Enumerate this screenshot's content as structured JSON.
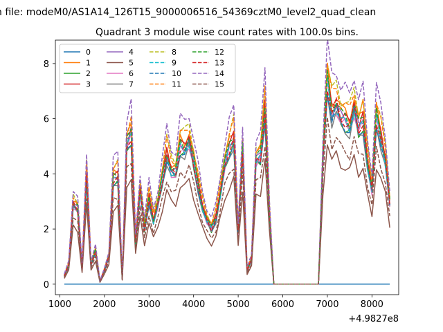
{
  "suptitle": "n file: modeM0/AS1A14_126T15_9000006516_54369cztM0_level2_quad_clean",
  "title": "Quadrant 3 module wise count rates with 100.0s bins.",
  "chart_data": {
    "type": "line",
    "title": "Quadrant 3 module wise count rates with 100.0s bins.",
    "xlabel": "",
    "ylabel": "",
    "x_offset_label": "+4.9827e8",
    "xlim": [
      900,
      8600
    ],
    "ylim": [
      -0.38,
      8.85
    ],
    "x_ticks": [
      1000,
      2000,
      3000,
      4000,
      5000,
      6000,
      7000,
      8000
    ],
    "x_tick_labels": [
      "1000",
      "2000",
      "3000",
      "4000",
      "5000",
      "6000",
      "7000",
      "8000"
    ],
    "y_ticks": [
      0,
      2,
      4,
      6,
      8
    ],
    "y_tick_labels": [
      "0",
      "2",
      "4",
      "6",
      "8"
    ],
    "grid": false,
    "legend_position": "top-left",
    "legend_columns": 4,
    "x": [
      1100,
      1200,
      1300,
      1400,
      1500,
      1600,
      1700,
      1800,
      1900,
      2000,
      2100,
      2200,
      2300,
      2400,
      2500,
      2600,
      2700,
      2800,
      2900,
      3000,
      3100,
      3200,
      3300,
      3400,
      3500,
      3600,
      3700,
      3800,
      3900,
      4000,
      4100,
      4200,
      4300,
      4400,
      4500,
      4600,
      4700,
      4800,
      4900,
      5000,
      5100,
      5200,
      5300,
      5400,
      5500,
      5600,
      5700,
      5800,
      5900,
      6000,
      6100,
      6200,
      6300,
      6400,
      6500,
      6600,
      6700,
      6800,
      6900,
      7000,
      7100,
      7200,
      7300,
      7400,
      7500,
      7600,
      7700,
      7800,
      7900,
      8000,
      8100,
      8200,
      8300,
      8400
    ],
    "base_profile": [
      0.3,
      0.7,
      2.9,
      2.7,
      0.6,
      3.9,
      0.7,
      1.2,
      0.1,
      0.5,
      1.0,
      3.8,
      3.9,
      0.2,
      5.0,
      5.4,
      1.5,
      3.4,
      2.0,
      3.1,
      2.3,
      2.9,
      3.8,
      4.7,
      4.1,
      4.0,
      5.0,
      4.9,
      5.2,
      4.4,
      3.6,
      2.8,
      2.3,
      2.0,
      2.4,
      3.3,
      4.3,
      4.9,
      5.3,
      1.9,
      4.8,
      0.5,
      0.9,
      4.5,
      4.6,
      6.3,
      2.6,
      0.0,
      0.0,
      0.0,
      0.0,
      0.0,
      0.0,
      0.0,
      0.0,
      0.0,
      0.0,
      0.0,
      4.5,
      7.3,
      6.2,
      6.5,
      6.0,
      5.9,
      5.7,
      6.4,
      5.6,
      5.9,
      4.4,
      3.4,
      6.0,
      5.3,
      4.5,
      2.9
    ],
    "series": [
      {
        "name": "0",
        "style": "solid",
        "color": "#1f77b4",
        "flat": 0.0
      },
      {
        "name": "1",
        "style": "solid",
        "color": "#ff7f0e",
        "scale": 1.06
      },
      {
        "name": "2",
        "style": "solid",
        "color": "#2ca02c",
        "scale": 0.97
      },
      {
        "name": "3",
        "style": "solid",
        "color": "#d62728",
        "scale": 1.02
      },
      {
        "name": "4",
        "style": "solid",
        "color": "#9467bd",
        "scale": 1.01
      },
      {
        "name": "5",
        "style": "solid",
        "color": "#8c564b",
        "scale": 0.72
      },
      {
        "name": "6",
        "style": "solid",
        "color": "#e377c2",
        "scale": 0.98
      },
      {
        "name": "7",
        "style": "solid",
        "color": "#7f7f7f",
        "scale": 0.95
      },
      {
        "name": "8",
        "style": "dashed",
        "color": "#bcbd22",
        "scale": 1.12
      },
      {
        "name": "9",
        "style": "dashed",
        "color": "#17becf",
        "scale": 0.99
      },
      {
        "name": "10",
        "style": "dashed",
        "color": "#1f77b4",
        "scale": 0.97
      },
      {
        "name": "11",
        "style": "dashed",
        "color": "#ff7f0e",
        "scale": 1.1
      },
      {
        "name": "12",
        "style": "dashed",
        "color": "#2ca02c",
        "scale": 1.03
      },
      {
        "name": "13",
        "style": "dashed",
        "color": "#d62728",
        "scale": 1.0
      },
      {
        "name": "14",
        "style": "dashed",
        "color": "#9467bd",
        "scale": 1.2
      },
      {
        "name": "15",
        "style": "dashed",
        "color": "#8c564b",
        "scale": 0.82
      }
    ]
  }
}
